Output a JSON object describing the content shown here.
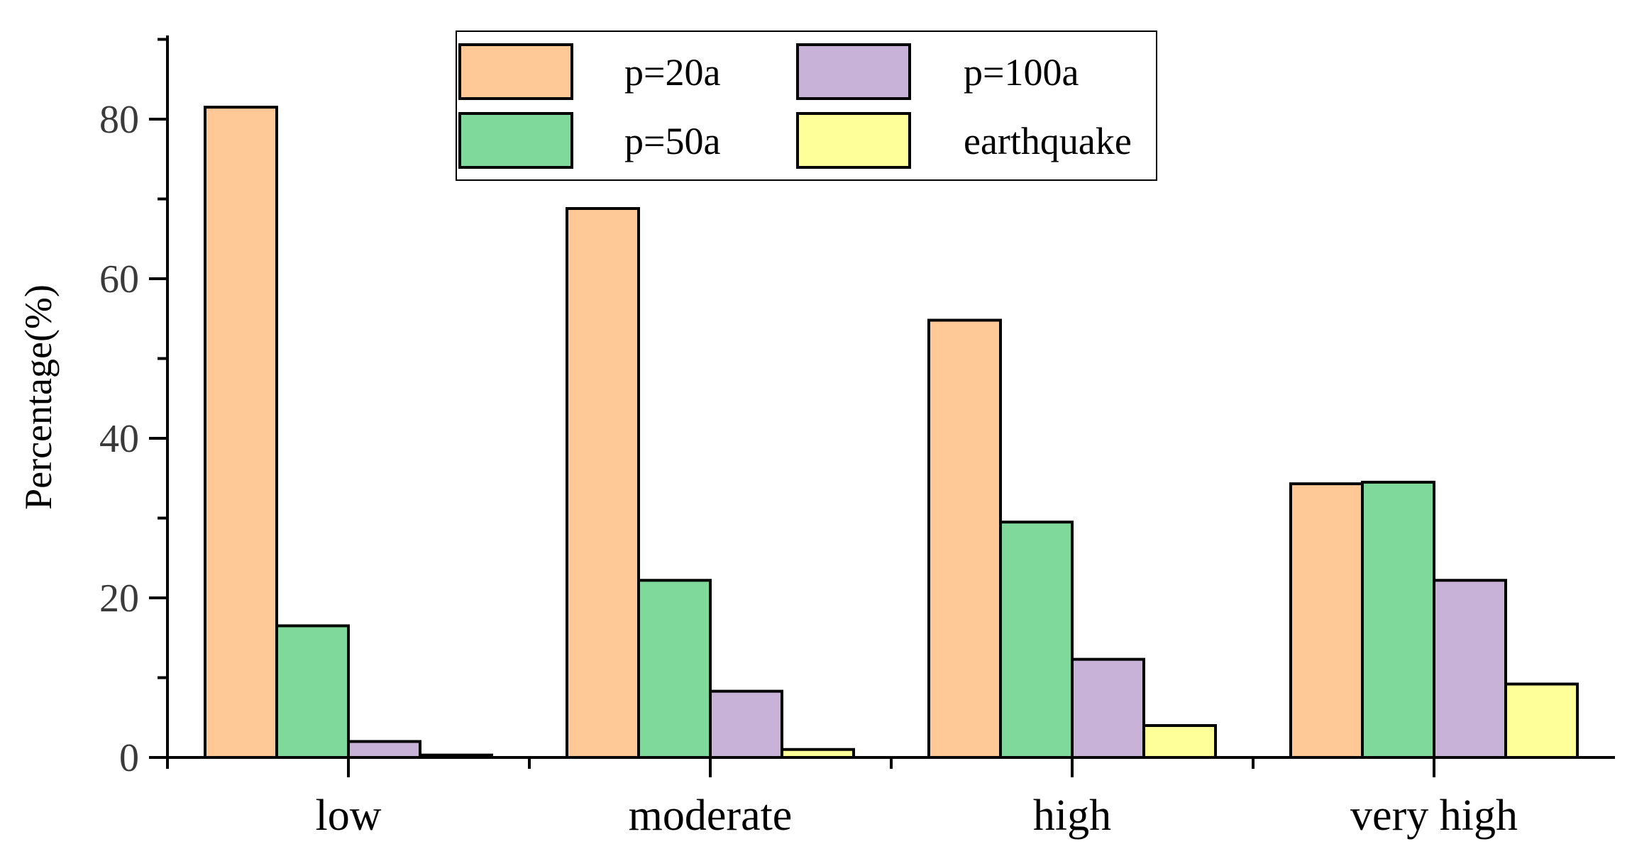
{
  "chart_data": {
    "type": "bar",
    "title": "",
    "xlabel": "",
    "ylabel": "Percentage(%)",
    "ylim": [
      0,
      90
    ],
    "yticks": [
      0,
      20,
      40,
      60,
      80
    ],
    "grid": false,
    "legend_position": "top-center",
    "categories": [
      "low",
      "moderate",
      "high",
      "very high"
    ],
    "series": [
      {
        "name": "p=20a",
        "color": "#FFC896",
        "values": [
          81.5,
          68.8,
          54.8,
          34.3
        ]
      },
      {
        "name": "p=50a",
        "color": "#7FD99A",
        "values": [
          16.5,
          22.2,
          29.5,
          34.5
        ]
      },
      {
        "name": "p=100a",
        "color": "#C9B2D8",
        "values": [
          2.0,
          8.3,
          12.3,
          22.2
        ]
      },
      {
        "name": "earthquake",
        "color": "#FFFF99",
        "values": [
          0.3,
          1.0,
          4.0,
          9.2
        ]
      }
    ]
  }
}
